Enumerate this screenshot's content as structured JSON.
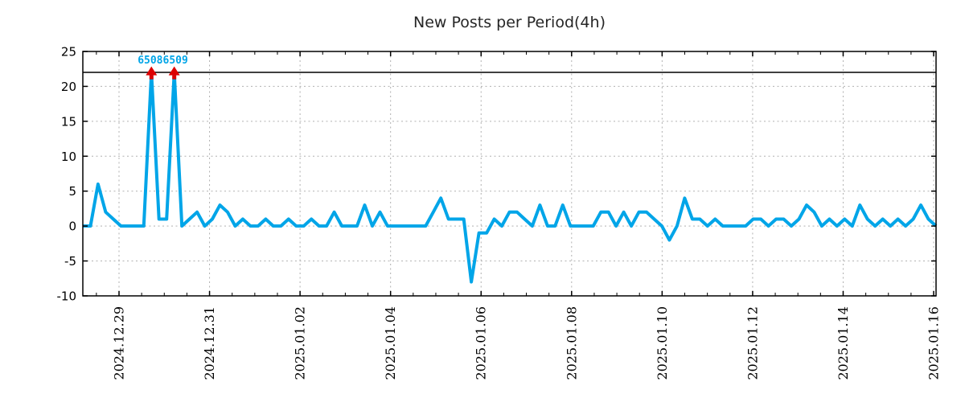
{
  "title": "New Posts per Period(4h)",
  "chart_data": {
    "type": "line",
    "title": "New Posts per Period(4h)",
    "period_hours": 4,
    "ylim": [
      -10,
      25
    ],
    "grid": true,
    "y_ticks": [
      -10,
      -5,
      0,
      5,
      10,
      15,
      20,
      25
    ],
    "x_tick_labels": [
      "2024.12.29",
      "2024.12.31",
      "2025.01.02",
      "2025.01.04",
      "2025.01.06",
      "2025.01.08",
      "2025.01.10",
      "2025.01.12",
      "2025.01.14",
      "2025.01.16"
    ],
    "values": [
      0,
      0,
      6,
      2,
      1,
      0,
      0,
      0,
      0,
      22,
      1,
      1,
      22,
      0,
      1,
      2,
      0,
      1,
      3,
      2,
      0,
      1,
      0,
      0,
      1,
      0,
      0,
      1,
      0,
      0,
      1,
      0,
      0,
      2,
      0,
      0,
      0,
      3,
      0,
      2,
      0,
      0,
      0,
      0,
      0,
      0,
      2,
      4,
      1,
      1,
      1,
      -8,
      -1,
      -1,
      1,
      0,
      2,
      2,
      1,
      0,
      3,
      0,
      0,
      3,
      0,
      0,
      0,
      0,
      2,
      2,
      0,
      2,
      0,
      2,
      2,
      1,
      0,
      -2,
      0,
      4,
      1,
      1,
      0,
      1,
      0,
      0,
      0,
      0,
      1,
      1,
      0,
      1,
      1,
      0,
      1,
      3,
      2,
      0,
      1,
      0,
      1,
      0,
      3,
      1,
      0,
      1,
      0,
      1,
      0,
      1,
      3,
      1,
      0
    ],
    "threshold_value": 22,
    "annotation": {
      "text": "65086509"
    },
    "markers": [
      {
        "index": 9,
        "value": 22
      },
      {
        "index": 12,
        "value": 22
      }
    ],
    "colors": {
      "line": "#00a5e8",
      "marker": "#dd0000",
      "grid": "#b0b0b0",
      "axis": "#000000",
      "annotation": "#00a5e8"
    }
  }
}
